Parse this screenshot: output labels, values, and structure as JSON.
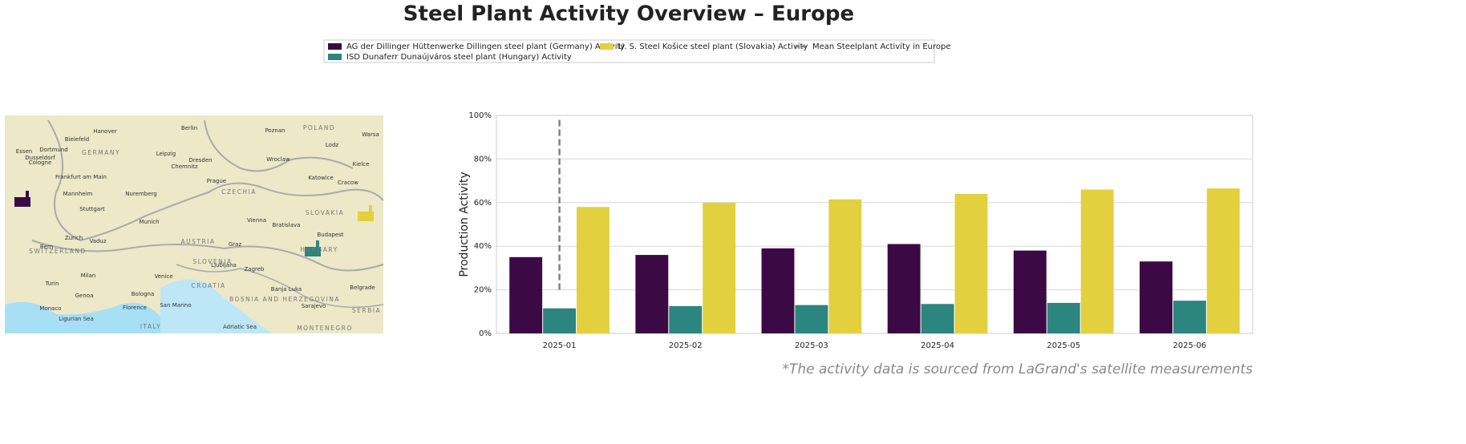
{
  "chart_data": {
    "type": "bar",
    "title": "Steel Plant Activity Overview – Europe",
    "ylabel": "Production Activity",
    "footnote": "*The activity data is sourced from LaGrand's satellite measurements",
    "categories": [
      "2025-01",
      "2025-02",
      "2025-03",
      "2025-04",
      "2025-05",
      "2025-06"
    ],
    "series": [
      {
        "name": "AG der Dillinger Hüttenwerke Dillingen steel plant (Germany) Activity",
        "color": "#3b0a45",
        "values": [
          35,
          36,
          39,
          41,
          38,
          33
        ]
      },
      {
        "name": "ISD Dunaferr Dunaújváros steel plant (Hungary) Activity",
        "color": "#2c857e",
        "values": [
          11.5,
          12.5,
          13,
          13.5,
          14,
          15
        ]
      },
      {
        "name": "U. S. Steel Košice steel plant (Slovakia) Activity",
        "color": "#e3d03e",
        "values": [
          58,
          60,
          61.5,
          64,
          66,
          66.5
        ]
      },
      {
        "name": "Mean Steelplant Activity in Europe",
        "type": "line",
        "style": "dashed",
        "color": "#808080",
        "x": [
          "2025-01",
          "2025-01"
        ],
        "values": [
          20,
          99
        ]
      }
    ],
    "ylim": [
      0,
      100
    ],
    "yticks": [
      {
        "value": 0,
        "label": "0%"
      },
      {
        "value": 20,
        "label": "20%"
      },
      {
        "value": 40,
        "label": "40%"
      },
      {
        "value": 60,
        "label": "60%"
      },
      {
        "value": 80,
        "label": "80%"
      },
      {
        "value": 100,
        "label": "100%"
      }
    ],
    "grid": true,
    "legend": "top"
  },
  "map": {
    "labels": [
      "Berlin",
      "Hanover",
      "Poznan",
      "POLAND",
      "Warsa",
      "Bielefeld",
      "Essen",
      "Dortmund",
      "GERMANY",
      "Dusseldorf",
      "Cologne",
      "Leipzig",
      "Dresden",
      "Chemnitz",
      "Wroclaw",
      "Lodz",
      "Kielce",
      "Frankfurt am Main",
      "Prague",
      "Katowice",
      "Cracow",
      "Mannheim",
      "Nuremberg",
      "CZECHIA",
      "Stuttgart",
      "SLOVAKIA",
      "Munich",
      "Vienna",
      "Bratislava",
      "Budapest",
      "Zurich",
      "Vaduz",
      "AUSTRIA",
      "Graz",
      "Bern",
      "SWITZERLAND",
      "HUNGARY",
      "SLOVENIA",
      "Ljubljana",
      "Zagreb",
      "Milan",
      "Venice",
      "CROATIA",
      "Turin",
      "Genoa",
      "Bologna",
      "Banja Luka",
      "BOSNIA AND HERZEGOVINA",
      "Belgrade",
      "Monaco",
      "Florence",
      "San Marino",
      "Sarajevo",
      "SERBIA",
      "ITALY",
      "Ligurian Sea",
      "Adriatic Sea",
      "MONTENEGRO"
    ]
  }
}
